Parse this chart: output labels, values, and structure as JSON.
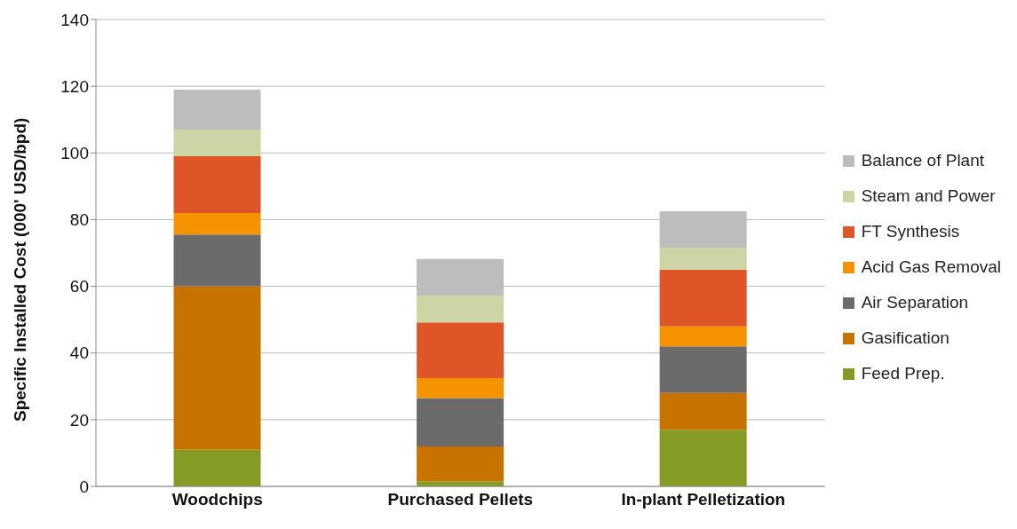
{
  "chart_data": {
    "type": "bar",
    "stacked": true,
    "ylabel": "Specific Installed Cost (000' USD/bpd)",
    "categories": [
      "Woodchips",
      "Purchased Pellets",
      "In-plant Pelletization"
    ],
    "series": [
      {
        "name": "Feed Prep.",
        "color": "#849b24",
        "values": [
          11,
          1.5,
          17
        ]
      },
      {
        "name": "Gasification",
        "color": "#c87200",
        "values": [
          49,
          10.5,
          11
        ]
      },
      {
        "name": "Air Separation",
        "color": "#6b6b6b",
        "values": [
          15.5,
          14.5,
          14
        ]
      },
      {
        "name": "Acid Gas Removal",
        "color": "#f59200",
        "values": [
          6.5,
          6,
          6
        ]
      },
      {
        "name": "FT Synthesis",
        "color": "#e05527",
        "values": [
          17,
          16.7,
          17
        ]
      },
      {
        "name": "Steam and Power",
        "color": "#cdd5a5",
        "values": [
          8,
          8,
          6.5
        ]
      },
      {
        "name": "Balance of Plant",
        "color": "#bdbdbd",
        "values": [
          12,
          11,
          11
        ]
      }
    ],
    "ylim": [
      0,
      140
    ],
    "yticks": [
      0,
      20,
      40,
      60,
      80,
      100,
      120,
      140
    ],
    "grid": "y",
    "legend": "right"
  }
}
